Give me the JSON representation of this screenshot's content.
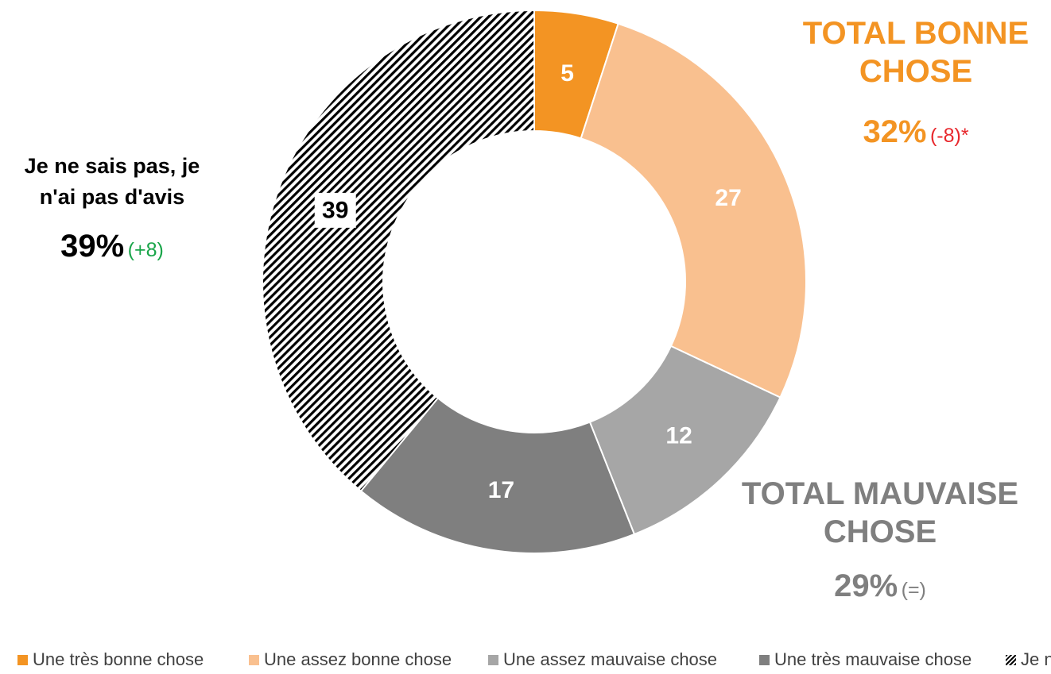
{
  "chart_data": {
    "type": "donut",
    "slices": [
      {
        "label": "Une très bonne chose",
        "value": 5,
        "color": "#f39423",
        "pattern": "solid",
        "label_color": "#ffffff"
      },
      {
        "label": "Une assez bonne chose",
        "value": 27,
        "color": "#f9c08f",
        "pattern": "solid",
        "label_color": "#ffffff"
      },
      {
        "label": "Une assez mauvaise chose",
        "value": 12,
        "color": "#a6a6a6",
        "pattern": "solid",
        "label_color": "#ffffff"
      },
      {
        "label": "Une très mauvaise chose",
        "value": 17,
        "color": "#7f7f7f",
        "pattern": "solid",
        "label_color": "#ffffff"
      },
      {
        "label": "Je ne sais pas, je n'ai pas d'avis",
        "value": 39,
        "color": "#000000",
        "pattern": "hatch",
        "label_color": "#000000"
      }
    ],
    "legend": {
      "placement": "bottom",
      "items": [
        "Une très bonne chose",
        "Une assez bonne chose",
        "Une assez mauvaise chose",
        "Une très mauvaise chose",
        "Je n"
      ]
    },
    "callouts": {
      "good": {
        "title_line1": "TOTAL BONNE",
        "title_line2": "CHOSE",
        "percent": "32%",
        "delta": "(-8)*",
        "color": "#f39423",
        "delta_color": "#e8282d"
      },
      "bad": {
        "title_line1": "TOTAL MAUVAISE",
        "title_line2": "CHOSE",
        "percent": "29%",
        "delta": "(=)",
        "color": "#7f7f7f",
        "delta_color": "#7f7f7f"
      },
      "unsure": {
        "title_line1": "Je ne sais pas, je",
        "title_line2": "n'ai pas d'avis",
        "percent": "39%",
        "delta": "(+8)",
        "color": "#000000",
        "delta_color": "#1aa54a"
      }
    }
  }
}
